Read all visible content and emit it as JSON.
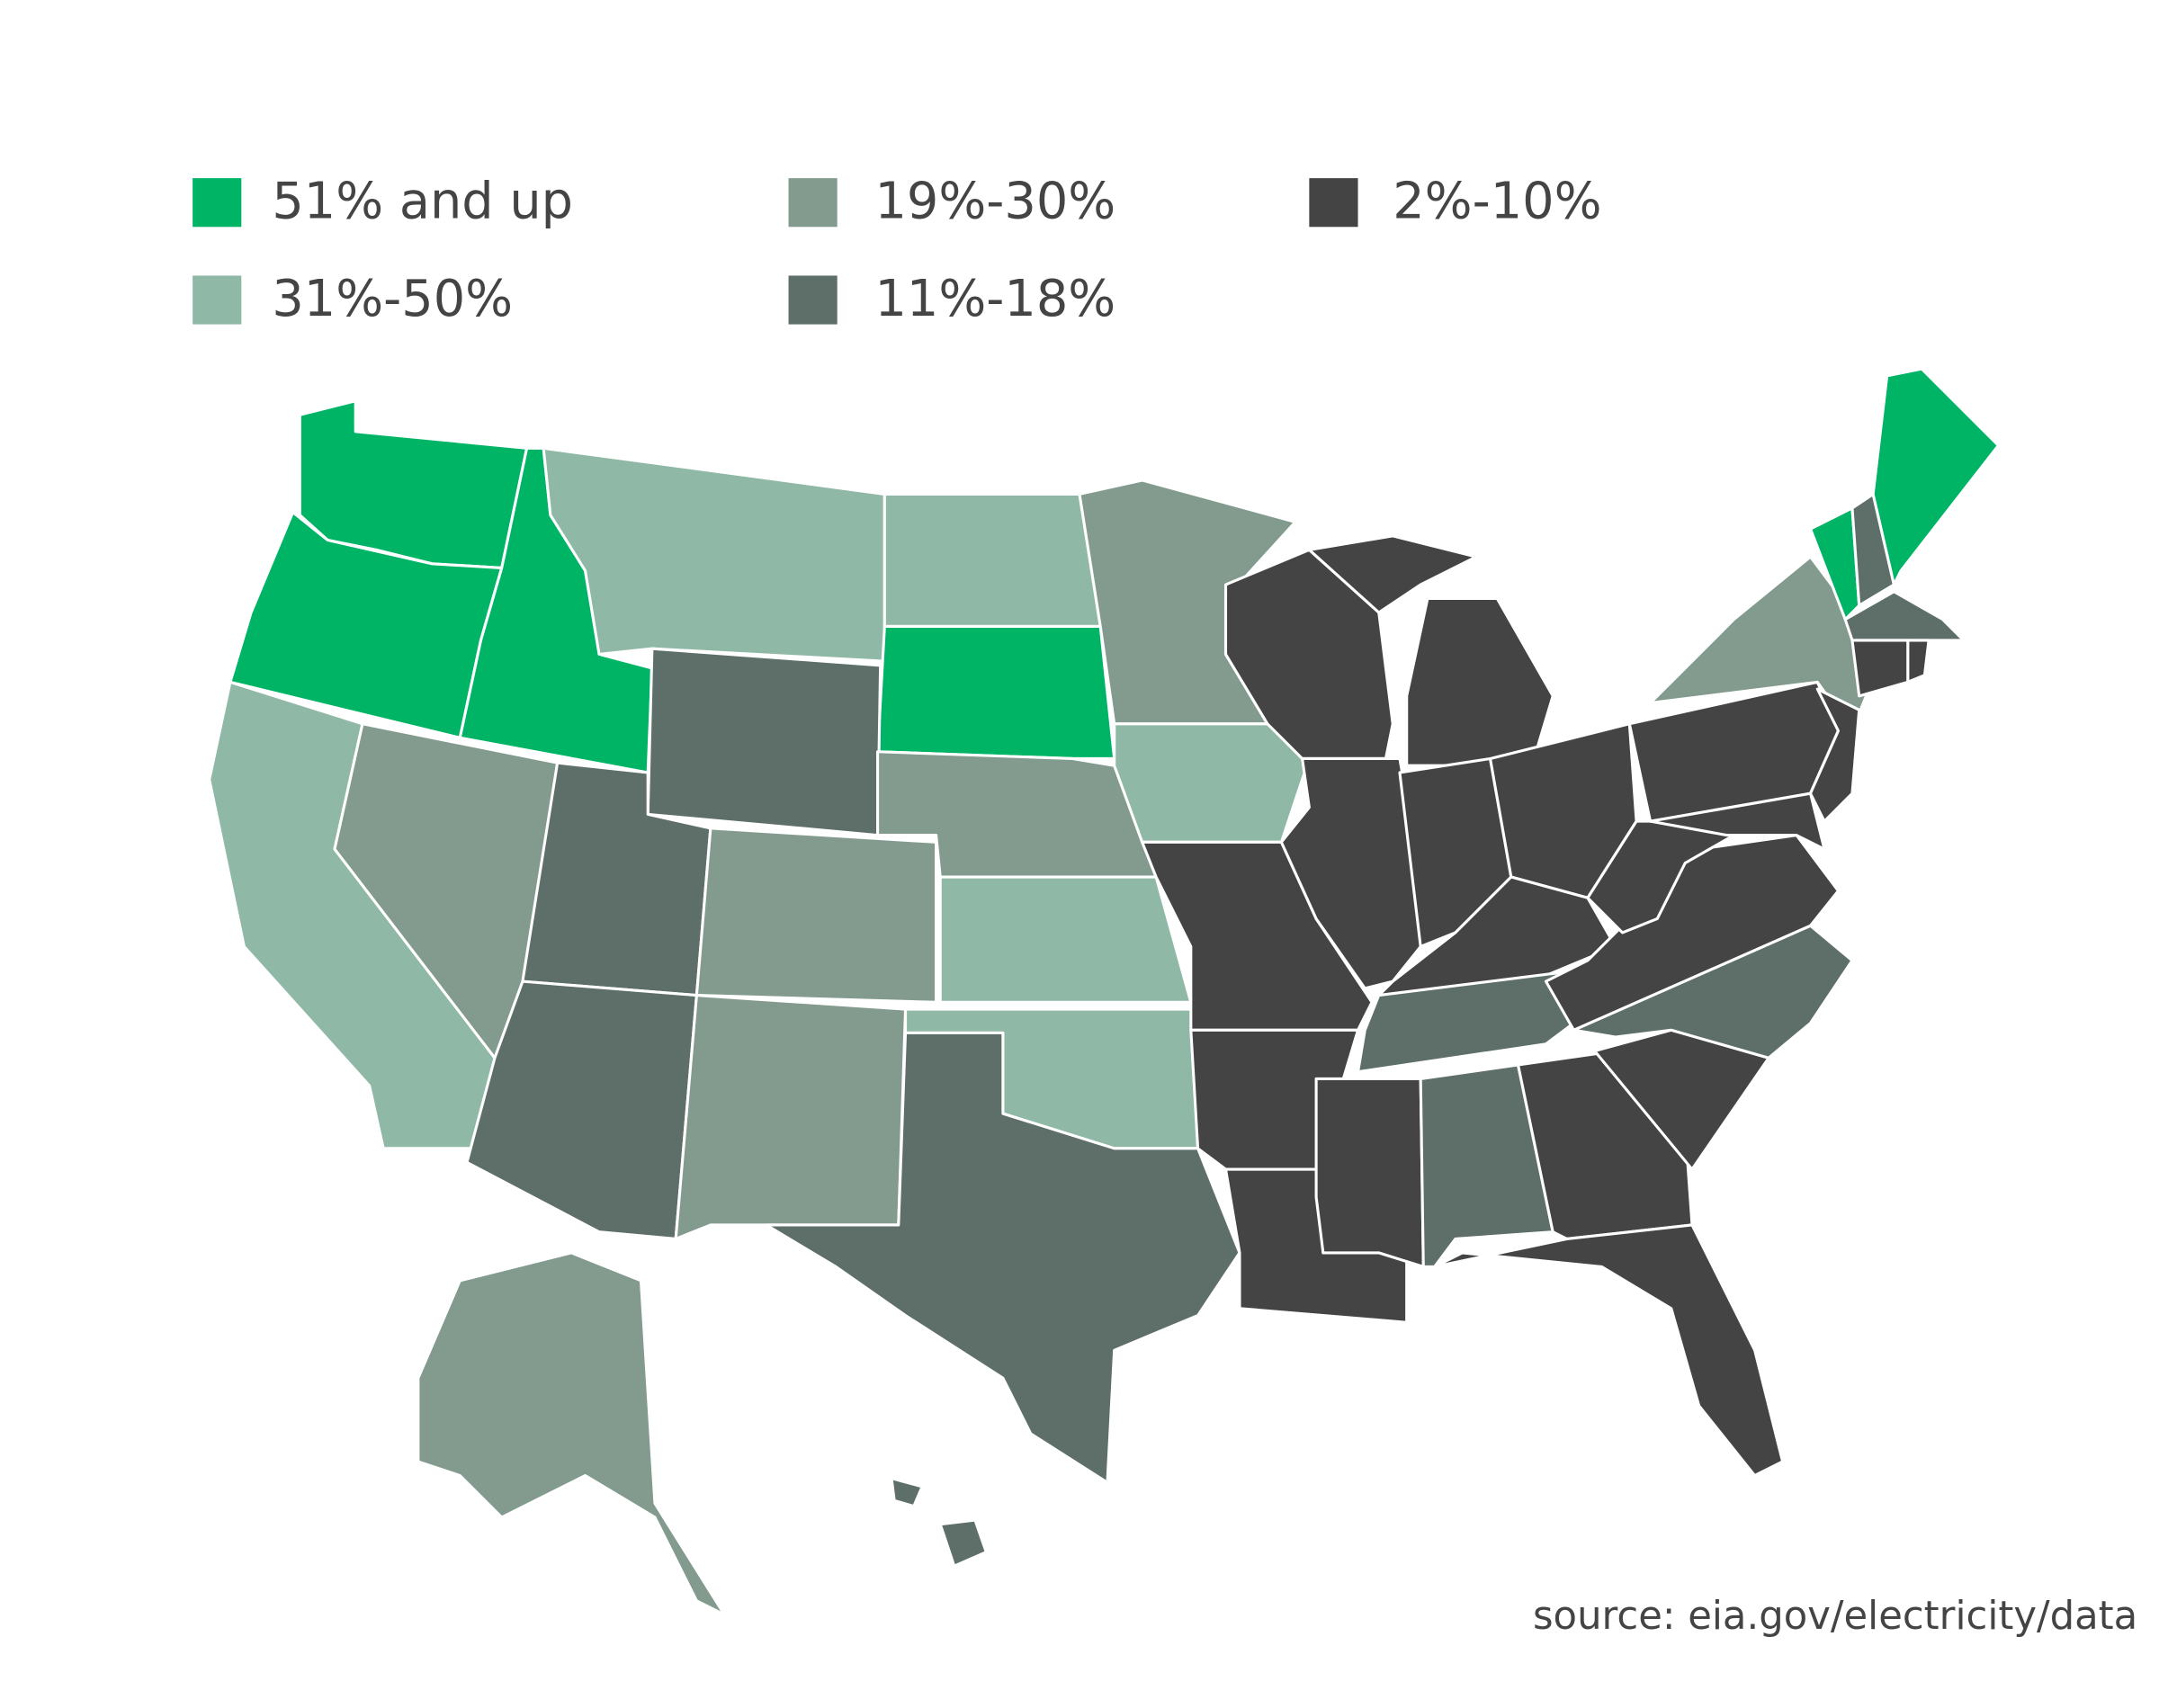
{
  "legend": [
    {
      "label": "51% and up",
      "color": "#00b466"
    },
    {
      "label": "31%-50%",
      "color": "#8fb8a6"
    },
    {
      "label": "19%-30%",
      "color": "#839b8f"
    },
    {
      "label": "11%-18%",
      "color": "#5d6f68"
    },
    {
      "label": "2%-10%",
      "color": "#444444"
    }
  ],
  "source": "source: eia.gov/electricity/data"
}
